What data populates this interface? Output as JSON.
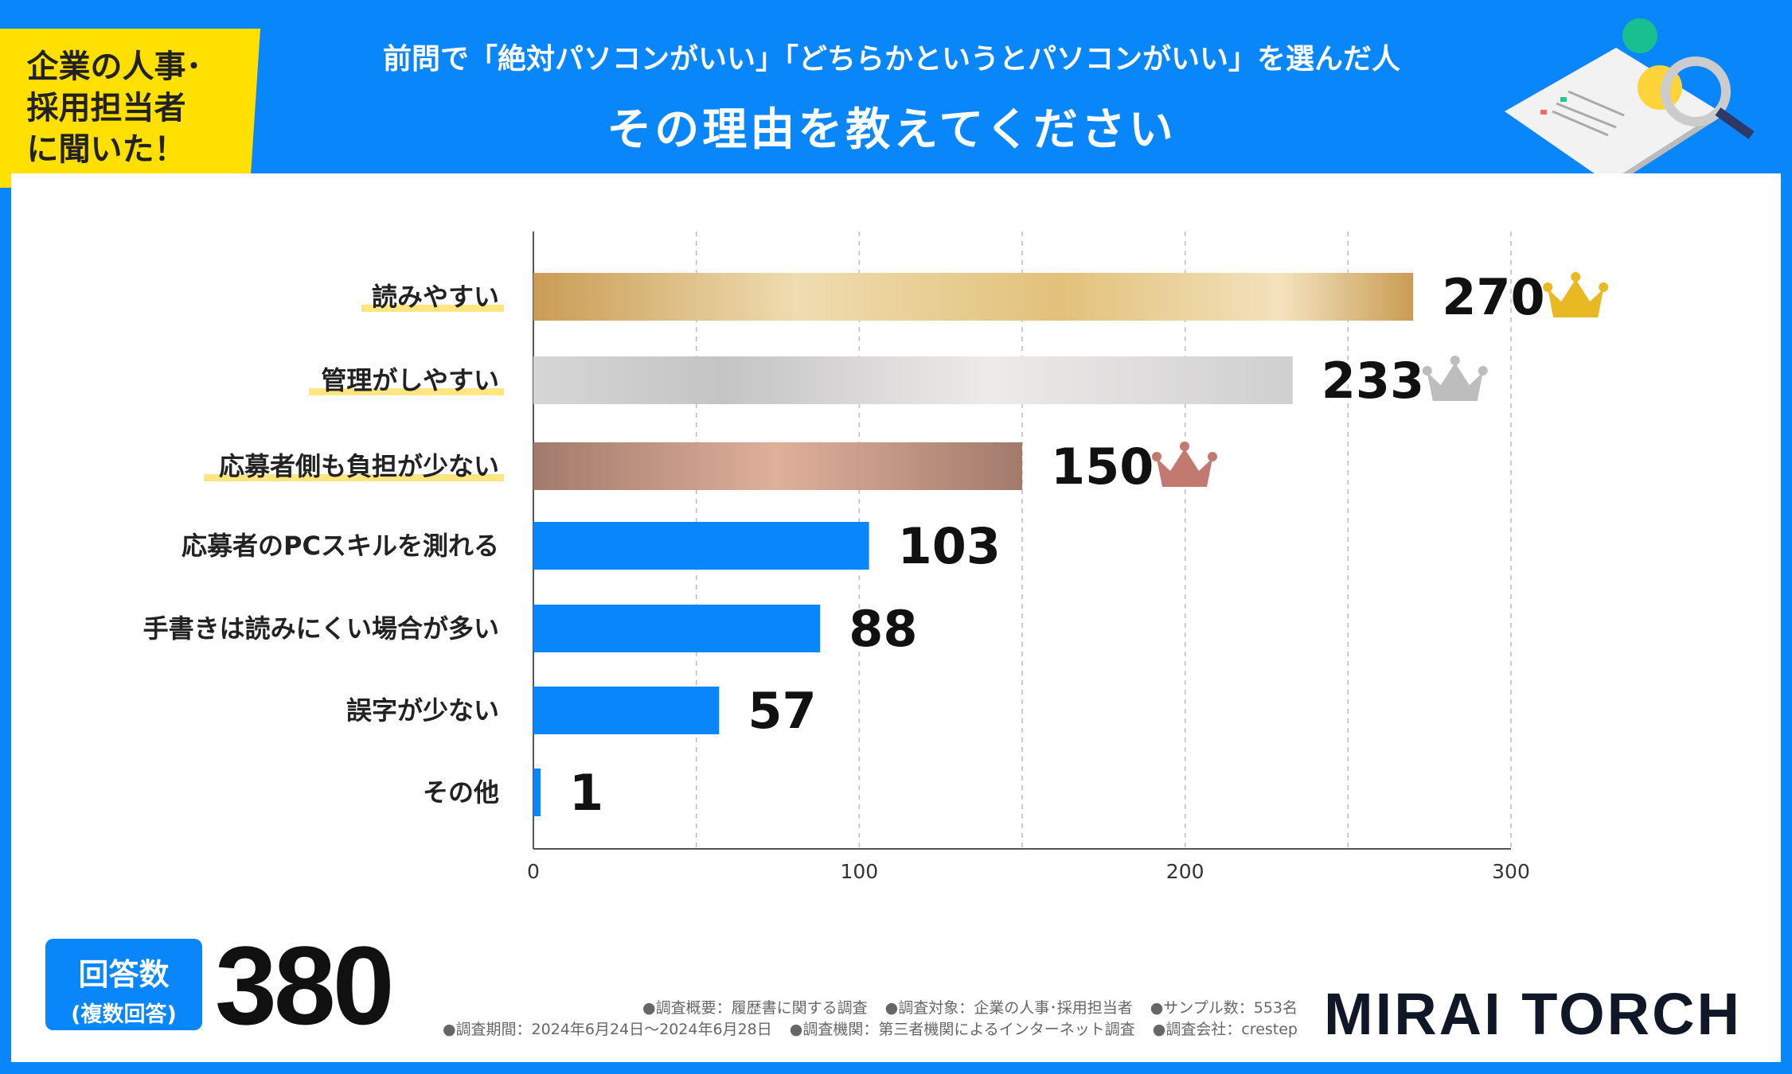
{
  "header": {
    "tag_lines": [
      "企業の人事･",
      "採用担当者",
      "に聞いた！"
    ],
    "title_line1": "前問で「絶対パソコンがいい」「どちらかというとパソコンがいい」を選んだ人",
    "title_line2": "その理由を教えてください"
  },
  "chart_data": {
    "type": "bar",
    "orientation": "horizontal",
    "categories": [
      "読みやすい",
      "管理がしやすい",
      "応募者側も負担が少ない",
      "応募者のPCスキルを測れる",
      "手書きは読みにくい場合が多い",
      "誤字が少ない",
      "その他"
    ],
    "values": [
      270,
      233,
      150,
      103,
      88,
      57,
      1
    ],
    "xlim": [
      0,
      300
    ],
    "xticks": [
      "0",
      "100",
      "200",
      "300"
    ],
    "grid": "vertical dashed",
    "ranks": [
      "gold",
      "silver",
      "bronze"
    ],
    "colors": {
      "bar": "#0a86fb",
      "gold": "#e2c17a",
      "silver": "#d2d2d2",
      "bronze": "#c29682",
      "crown_gold": "#e8b923",
      "crown_silver": "#bdbdbd",
      "crown_bronze": "#c27a70",
      "highlight": "#ffe680"
    }
  },
  "footer": {
    "answers_label": "回答数",
    "answers_sub": "(複数回答)",
    "answers_total": "380",
    "notes_line1": [
      "●調査概要：履歴書に関する調査",
      "●調査対象：企業の人事･採用担当者",
      "●サンプル数：553名"
    ],
    "notes_line2": [
      "●調査期間：2024年6月24日～2024年6月28日",
      "●調査機関：第三者機関によるインターネット調査",
      "●調査会社：crestep"
    ],
    "logo": "MIRAI TORCH"
  }
}
